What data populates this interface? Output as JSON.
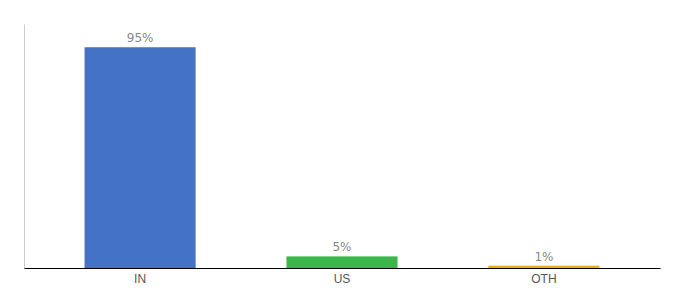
{
  "chart_data": {
    "type": "bar",
    "categories": [
      "IN",
      "US",
      "OTH"
    ],
    "values": [
      95,
      5,
      1
    ],
    "value_labels": [
      "95%",
      "5%",
      "1%"
    ],
    "colors": [
      "#4472c4",
      "#3cb54a",
      "#f5a623"
    ],
    "ylim": [
      0,
      105
    ],
    "data_labels": true,
    "tick_labels": "x"
  }
}
